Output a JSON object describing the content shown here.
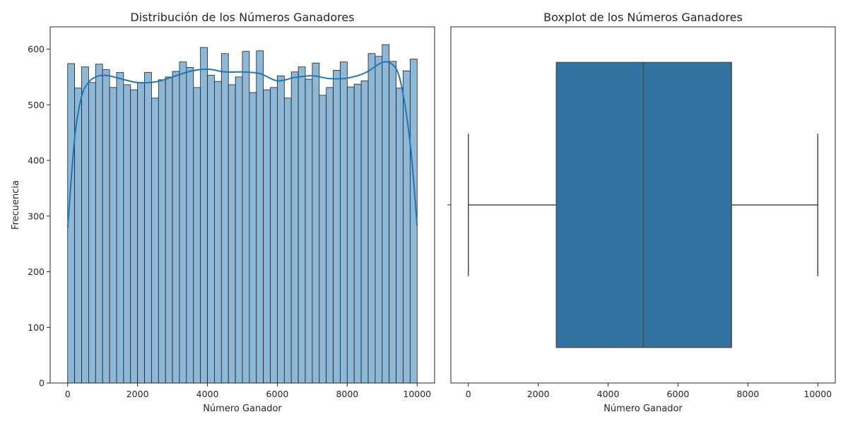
{
  "chart_data": [
    {
      "type": "bar",
      "title": "Distribución de los Números Ganadores",
      "xlabel": "Número Ganador",
      "ylabel": "Frecuencia",
      "xlim": [
        -500,
        10500
      ],
      "ylim": [
        0,
        640
      ],
      "xticks": [
        0,
        2000,
        4000,
        6000,
        8000,
        10000
      ],
      "yticks": [
        0,
        100,
        200,
        300,
        400,
        500,
        600
      ],
      "bar_color": "#8db8d8",
      "edge_color": "#1f1f1f",
      "kde_color": "#1f77b4",
      "bin_start": 0,
      "bin_width": 200,
      "values": [
        574,
        530,
        568,
        540,
        573,
        563,
        531,
        558,
        536,
        527,
        540,
        558,
        512,
        545,
        550,
        560,
        577,
        567,
        531,
        603,
        553,
        542,
        592,
        536,
        550,
        596,
        522,
        597,
        527,
        531,
        552,
        512,
        559,
        568,
        546,
        575,
        517,
        531,
        562,
        577,
        532,
        537,
        543,
        592,
        587,
        608,
        578,
        530,
        561,
        582
      ],
      "kde": {
        "x": [
          0,
          200,
          400,
          600,
          800,
          1000,
          1200,
          1500,
          2000,
          2500,
          3000,
          3500,
          4000,
          4500,
          5000,
          5500,
          6000,
          6500,
          7000,
          7500,
          8000,
          8500,
          9000,
          9300,
          9500,
          9700,
          9850,
          10000
        ],
        "y": [
          278,
          440,
          515,
          540,
          550,
          553,
          552,
          547,
          540,
          541,
          550,
          560,
          564,
          559,
          559,
          556,
          543,
          549,
          552,
          547,
          548,
          557,
          576,
          572,
          548,
          480,
          400,
          283
        ]
      }
    },
    {
      "type": "box",
      "title": "Boxplot de los Números Ganadores",
      "xlabel": "Número Ganador",
      "xlim": [
        -500,
        10500
      ],
      "xticks": [
        0,
        2000,
        4000,
        6000,
        8000,
        10000
      ],
      "box_color": "#3274a1",
      "line_color": "#4a4a4a",
      "whisker_low": 1,
      "q1": 2520,
      "median": 5010,
      "q3": 7530,
      "whisker_high": 10000
    }
  ]
}
